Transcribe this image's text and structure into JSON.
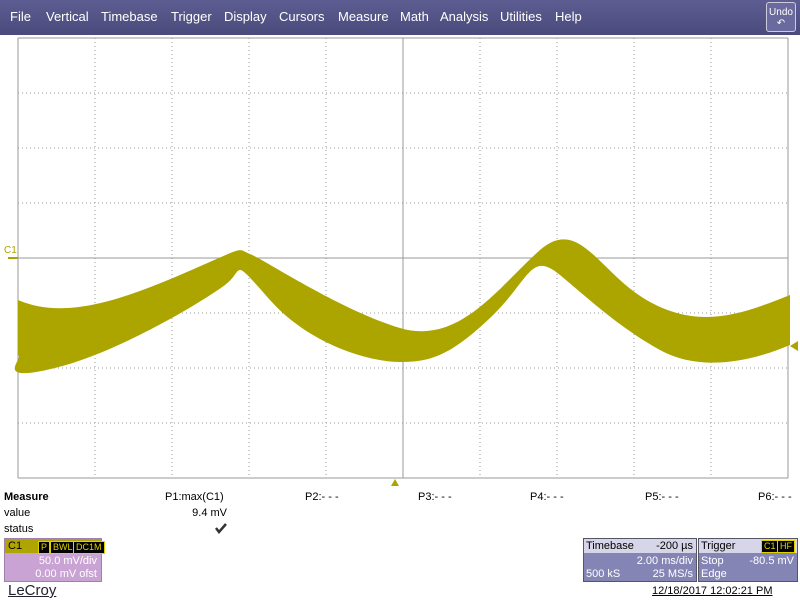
{
  "menu": {
    "items": [
      "File",
      "Vertical",
      "Timebase",
      "Trigger",
      "Display",
      "Cursors",
      "Measure",
      "Math",
      "Analysis",
      "Utilities",
      "Help"
    ],
    "undo": "Undo"
  },
  "display": {
    "channel_label": "C1"
  },
  "measure": {
    "title": "Measure",
    "rows": [
      "value",
      "status"
    ],
    "params": [
      {
        "name": "P1:max(C1)",
        "value": "9.4 mV"
      },
      {
        "name": "P2:- - -"
      },
      {
        "name": "P3:- - -"
      },
      {
        "name": "P4:- - -"
      },
      {
        "name": "P5:- - -"
      },
      {
        "name": "P6:- - -"
      }
    ]
  },
  "channel": {
    "name": "C1",
    "badges": [
      "P",
      "BWL",
      "DC1M"
    ],
    "scale": "50.0 mV/div",
    "offset": "0.00 mV ofst"
  },
  "timebase": {
    "title": "Timebase",
    "delay": "-200 µs",
    "scale": "2.00 ms/div",
    "samples": "500 kS",
    "rate": "25 MS/s"
  },
  "trigger": {
    "title": "Trigger",
    "source": "C1",
    "coupling": "HF",
    "mode": "Stop",
    "level": "-80.5 mV",
    "type": "Edge"
  },
  "footer": {
    "brand": "LeCroy",
    "timestamp": "12/18/2017 12:02:21 PM"
  }
}
